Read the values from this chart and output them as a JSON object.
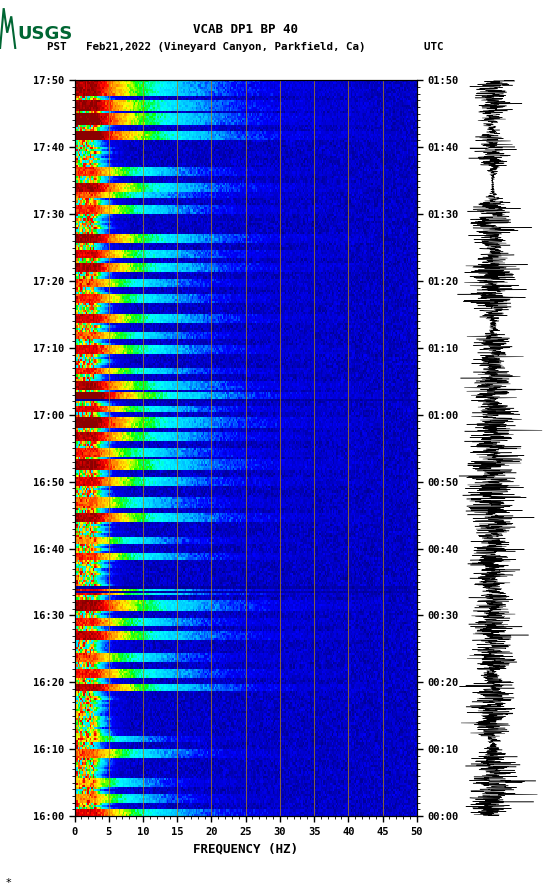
{
  "title_line1": "VCAB DP1 BP 40",
  "title_line2": "PST   Feb21,2022 (Vineyard Canyon, Parkfield, Ca)         UTC",
  "xlabel": "FREQUENCY (HZ)",
  "freq_min": 0,
  "freq_max": 50,
  "ytick_pst": [
    "16:00",
    "16:10",
    "16:20",
    "16:30",
    "16:40",
    "16:50",
    "17:00",
    "17:10",
    "17:20",
    "17:30",
    "17:40",
    "17:50"
  ],
  "ytick_utc": [
    "00:00",
    "00:10",
    "00:20",
    "00:30",
    "00:40",
    "00:50",
    "01:00",
    "01:10",
    "01:20",
    "01:30",
    "01:40",
    "01:50"
  ],
  "xticks": [
    0,
    5,
    10,
    15,
    20,
    25,
    30,
    35,
    40,
    45,
    50
  ],
  "vertical_line_freqs": [
    5,
    10,
    15,
    20,
    25,
    30,
    35,
    40,
    45
  ],
  "background_color": "#ffffff",
  "spectrogram_bg": "#00008B",
  "usgs_green": "#006633",
  "colormap_nodes": [
    [
      0.0,
      "#00008B"
    ],
    [
      0.18,
      "#0000FF"
    ],
    [
      0.32,
      "#00BFFF"
    ],
    [
      0.46,
      "#00FFFF"
    ],
    [
      0.57,
      "#00FF00"
    ],
    [
      0.67,
      "#FFFF00"
    ],
    [
      0.79,
      "#FF8C00"
    ],
    [
      0.89,
      "#FF0000"
    ],
    [
      1.0,
      "#8B0000"
    ]
  ]
}
